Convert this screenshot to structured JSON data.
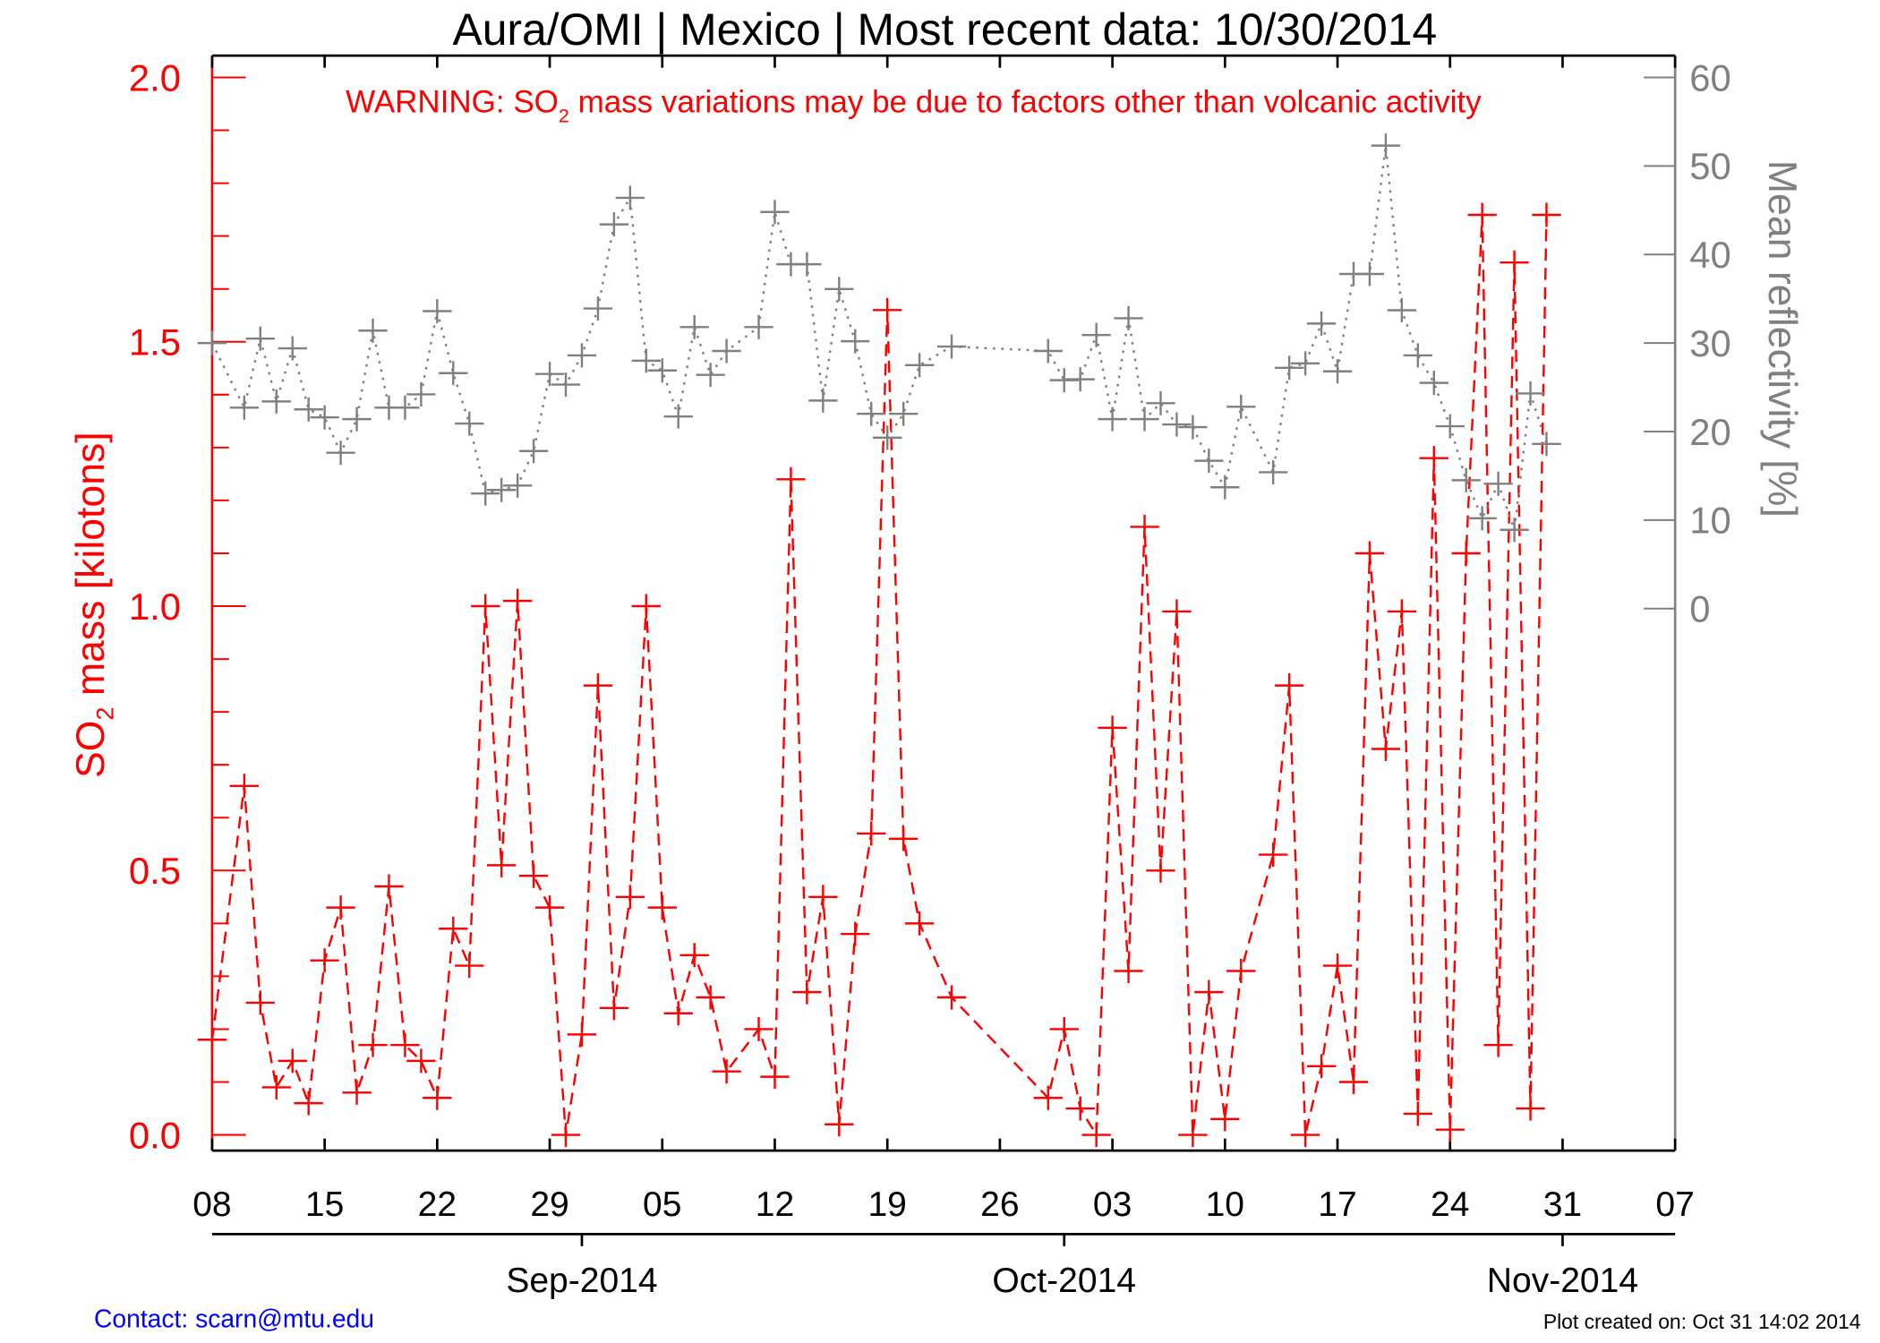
{
  "chart_data": {
    "type": "line",
    "title": "Aura/OMI | Mexico | Most recent data: 10/30/2014",
    "warning": {
      "prefix": "WARNING: SO",
      "sub": "2",
      "suffix": " mass variations may be due to factors other than volcanic activity"
    },
    "ylabel_left": {
      "prefix": "SO",
      "sub": "2",
      "suffix": " mass [kilotons]"
    },
    "ylabel_right": "Mean reflectivity [%]",
    "xlim": [
      "2014-08-08",
      "2014-11-07"
    ],
    "ylim_left": [
      0,
      2.0
    ],
    "ylim_right": [
      0,
      60
    ],
    "left_ticks": [
      "0.0",
      "0.5",
      "1.0",
      "1.5",
      "2.0"
    ],
    "right_ticks": [
      "0",
      "10",
      "20",
      "30",
      "40",
      "50",
      "60"
    ],
    "x_ticks": [
      "08",
      "15",
      "22",
      "29",
      "05",
      "12",
      "19",
      "26",
      "03",
      "10",
      "17",
      "24",
      "31",
      "07"
    ],
    "month_labels": [
      "Sep-2014",
      "Oct-2014",
      "Nov-2014"
    ],
    "dates": [
      "2014-08-08",
      "2014-08-10",
      "2014-08-11",
      "2014-08-12",
      "2014-08-13",
      "2014-08-14",
      "2014-08-15",
      "2014-08-16",
      "2014-08-17",
      "2014-08-18",
      "2014-08-19",
      "2014-08-20",
      "2014-08-21",
      "2014-08-22",
      "2014-08-23",
      "2014-08-24",
      "2014-08-25",
      "2014-08-26",
      "2014-08-27",
      "2014-08-28",
      "2014-08-29",
      "2014-08-30",
      "2014-08-31",
      "2014-09-01",
      "2014-09-02",
      "2014-09-03",
      "2014-09-04",
      "2014-09-05",
      "2014-09-06",
      "2014-09-07",
      "2014-09-08",
      "2014-09-09",
      "2014-09-11",
      "2014-09-12",
      "2014-09-13",
      "2014-09-14",
      "2014-09-15",
      "2014-09-16",
      "2014-09-17",
      "2014-09-18",
      "2014-09-19",
      "2014-09-20",
      "2014-09-21",
      "2014-09-23",
      "2014-09-29",
      "2014-09-30",
      "2014-10-01",
      "2014-10-02",
      "2014-10-03",
      "2014-10-04",
      "2014-10-05",
      "2014-10-06",
      "2014-10-07",
      "2014-10-08",
      "2014-10-09",
      "2014-10-10",
      "2014-10-11",
      "2014-10-13",
      "2014-10-14",
      "2014-10-15",
      "2014-10-16",
      "2014-10-17",
      "2014-10-18",
      "2014-10-19",
      "2014-10-20",
      "2014-10-21",
      "2014-10-22",
      "2014-10-23",
      "2014-10-24",
      "2014-10-25",
      "2014-10-26",
      "2014-10-27",
      "2014-10-28",
      "2014-10-29",
      "2014-10-30"
    ],
    "series": [
      {
        "name": "SO2 mass",
        "axis": "left",
        "color": "#ff0000",
        "style": "dashed",
        "values": [
          0.18,
          0.66,
          0.25,
          0.09,
          0.14,
          0.06,
          0.33,
          0.43,
          0.08,
          0.17,
          0.47,
          0.17,
          0.14,
          0.07,
          0.39,
          0.32,
          1.0,
          0.51,
          1.01,
          0.49,
          0.43,
          0.0,
          0.19,
          0.85,
          0.24,
          0.45,
          1.0,
          0.43,
          0.23,
          0.34,
          0.26,
          0.12,
          0.2,
          0.11,
          1.24,
          0.27,
          0.45,
          0.02,
          0.38,
          0.57,
          1.56,
          0.56,
          0.4,
          0.26,
          0.07,
          0.2,
          0.05,
          0.0,
          0.77,
          0.31,
          1.15,
          0.5,
          0.99,
          0.0,
          0.27,
          0.03,
          0.31,
          0.53,
          0.85,
          0.0,
          0.13,
          0.32,
          0.1,
          1.1,
          0.73,
          0.99,
          0.04,
          1.28,
          0.01,
          1.1,
          1.74,
          0.17,
          1.65,
          0.05,
          1.74
        ]
      },
      {
        "name": "Mean reflectivity",
        "axis": "right",
        "color": "#808080",
        "style": "dotted",
        "values": [
          30,
          22.7,
          30.5,
          23.4,
          29.4,
          22.5,
          21.6,
          17.6,
          21.4,
          31.4,
          22.7,
          22.7,
          24.2,
          33.6,
          26.6,
          20.9,
          13,
          13.4,
          13.9,
          17.8,
          26.5,
          25.3,
          28.6,
          33.9,
          43.4,
          46.4,
          28,
          26.9,
          21.7,
          31.8,
          26.4,
          29.1,
          31.8,
          44.8,
          38.9,
          38.9,
          23.5,
          36.1,
          30.2,
          22,
          19.3,
          22,
          27.5,
          29.6,
          29.1,
          25.8,
          25.9,
          30.9,
          21.4,
          32.8,
          21.4,
          23.2,
          20.8,
          20.5,
          16.7,
          13.7,
          22.8,
          15.4,
          27.2,
          27.7,
          32.2,
          26.8,
          37.8,
          37.8,
          52.3,
          33.7,
          28.6,
          25.5,
          20.6,
          14.5,
          10.2,
          14.1,
          8.9,
          24.3,
          18.6
        ]
      }
    ]
  },
  "footer": {
    "contact": "Contact: scarn@mtu.edu",
    "created": "Plot created on: Oct 31 14:02 2014"
  }
}
